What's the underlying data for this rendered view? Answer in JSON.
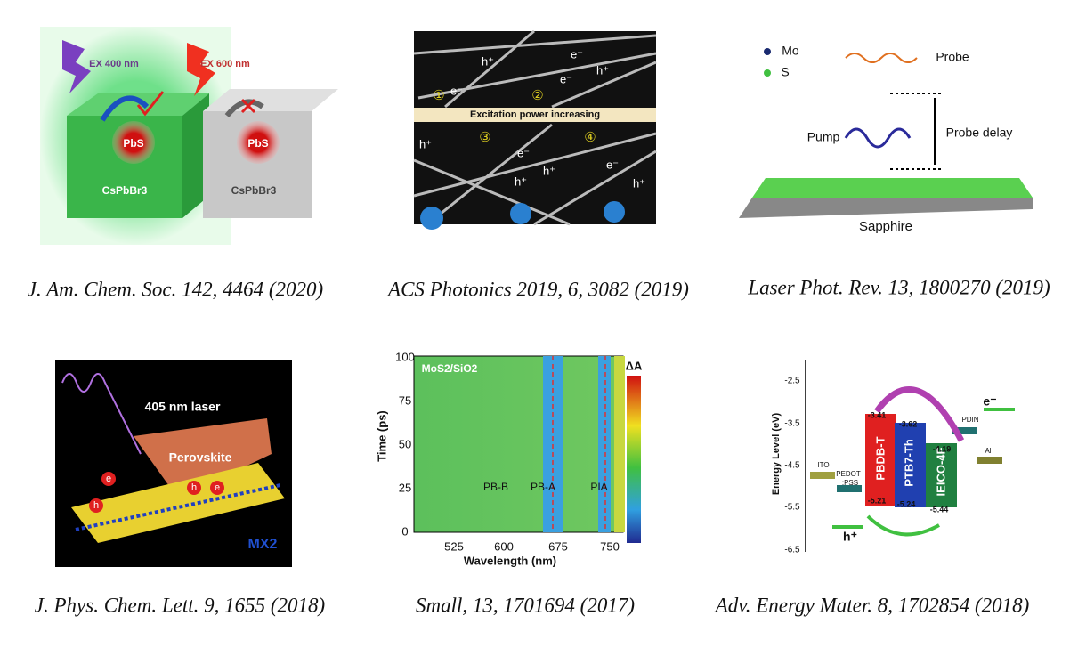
{
  "panels": [
    {
      "caption": "J. Am. Chem. Soc. 142, 4464 (2020)",
      "labels": [
        "EX 400 nm",
        "EX 600 nm",
        "PbS",
        "PbS",
        "CsPbBr3",
        "CsPbBr3"
      ]
    },
    {
      "caption": "ACS Photonics 2019, 6, 3082 (2019)",
      "labels": [
        "Excitation power increasing",
        "e⁻",
        "h⁺",
        "e⁻",
        "e⁻",
        "h⁺",
        "①",
        "②",
        "h⁺",
        "③",
        "e⁻",
        "h⁺",
        "h⁺",
        "④",
        "e⁻",
        "h⁺"
      ]
    },
    {
      "caption": "Laser Phot. Rev. 13, 1800270 (2019)",
      "labels": [
        "Mo",
        "S",
        "Probe",
        "Pump",
        "Probe delay",
        "Sapphire"
      ]
    },
    {
      "caption": "J. Phys. Chem. Lett.  9, 1655 (2018)",
      "labels": [
        "405 nm laser",
        "Perovskite",
        "MX2",
        "e",
        "h",
        "h",
        "e"
      ]
    },
    {
      "caption": "Small, 13, 1701694 (2017)",
      "labels": [
        "100",
        "75",
        "50",
        "25",
        "0",
        "525",
        "600",
        "675",
        "750",
        "Time (ps)",
        "Wavelength (nm)",
        "MoS2/SiO2",
        "PB-B",
        "PB-A",
        "PIA",
        "ΔA"
      ]
    },
    {
      "caption": "Adv. Energy Mater. 8, 1702854 (2018)",
      "labels": [
        "-2.5",
        "-3.5",
        "-4.5",
        "-5.5",
        "-6.5",
        "Energy Level (eV)",
        "ITO",
        "PEDOT",
        ":PSS",
        "PBDB-T",
        "PTB7-Th",
        "IEICO-4F",
        "PDIN",
        "Al",
        "-3.41",
        "-3.62",
        "-4.19",
        "-5.21",
        "-5.24",
        "-5.44",
        "e⁻",
        "h⁺"
      ]
    }
  ]
}
